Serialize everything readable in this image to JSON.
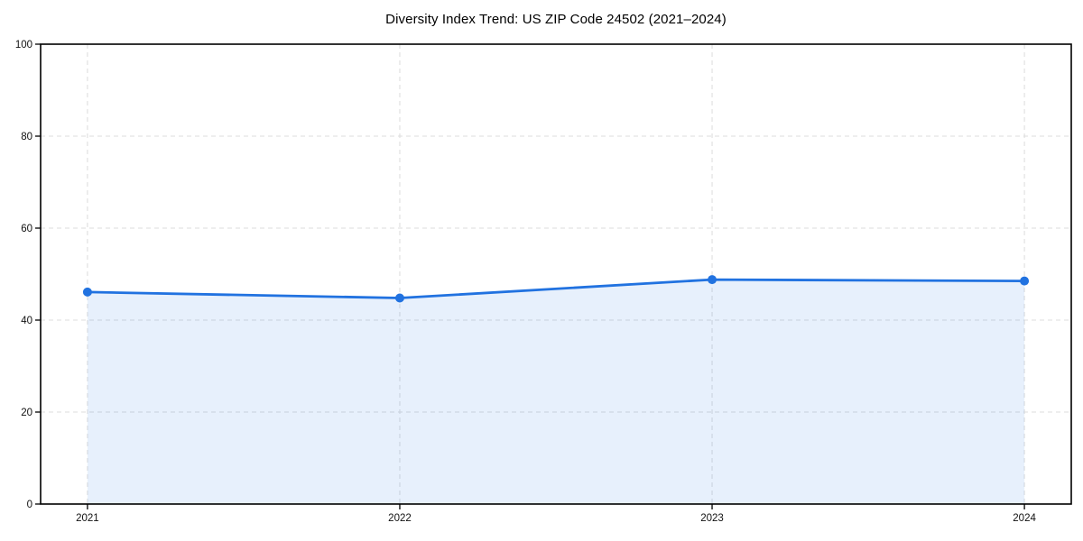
{
  "figure": {
    "background": "#ffffff"
  },
  "chart_data": {
    "type": "line",
    "title": "Diversity Index Trend: US ZIP Code 24502 (2021–2024)",
    "x": [
      2021,
      2022,
      2023,
      2024
    ],
    "categories": [
      "2021",
      "2022",
      "2023",
      "2024"
    ],
    "series": [
      {
        "name": "Diversity Index",
        "values": [
          46.1,
          44.8,
          48.8,
          48.5
        ]
      }
    ],
    "area_fill": true,
    "markers": true,
    "xlabel": "",
    "ylabel": "",
    "xlim": [
      2020.85,
      2024.15
    ],
    "ylim": [
      0,
      100
    ],
    "yticks": [
      0,
      20,
      40,
      60,
      80,
      100
    ],
    "grid": true,
    "grid_style": "dashed",
    "legend": "none",
    "colors": {
      "line": "#2172e0",
      "marker": "#2172e0",
      "fill": "rgba(33, 114, 224, 0.11)",
      "grid": "#dcdcdc",
      "spine": "#000000",
      "tick_text": "#111111",
      "title_text": "#000000"
    }
  }
}
